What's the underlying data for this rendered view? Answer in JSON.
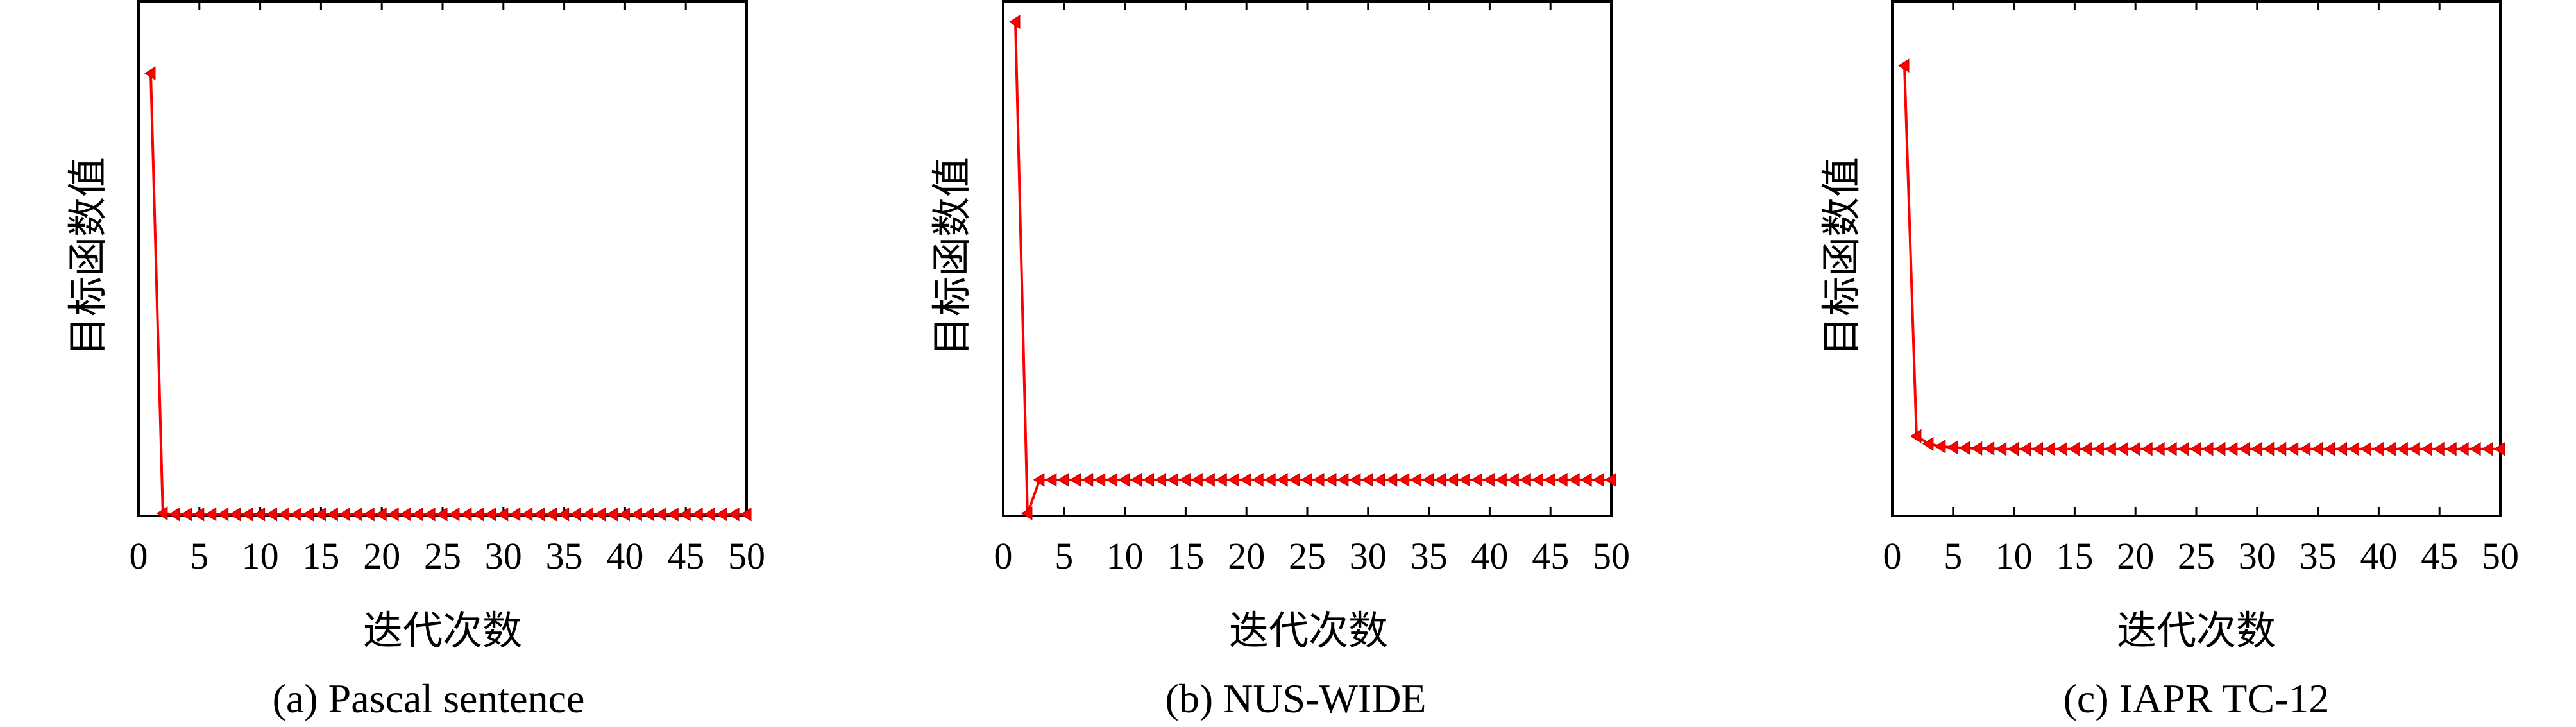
{
  "chart_data": [
    {
      "type": "line",
      "caption": "(a) Pascal sentence",
      "xlabel": "迭代次数",
      "ylabel": "目标函数值",
      "xlim": [
        0,
        50
      ],
      "ylim": [
        0,
        1
      ],
      "x_ticks": [
        "0",
        "5",
        "10",
        "15",
        "20",
        "25",
        "30",
        "35",
        "40",
        "45",
        "50"
      ],
      "y_ticks": [],
      "color": "#ff0000",
      "marker": "left-triangle",
      "series": [
        {
          "values": [
            0.86,
            0.005,
            0.003,
            0.003,
            0.003,
            0.003,
            0.003,
            0.003,
            0.003,
            0.003,
            0.003,
            0.003,
            0.003,
            0.003,
            0.003,
            0.003,
            0.003,
            0.003,
            0.003,
            0.003,
            0.003,
            0.003,
            0.003,
            0.003,
            0.003,
            0.003,
            0.003,
            0.003,
            0.003,
            0.003,
            0.003,
            0.003,
            0.003,
            0.003,
            0.003,
            0.003,
            0.003,
            0.003,
            0.003,
            0.003,
            0.003,
            0.003,
            0.003,
            0.003,
            0.003,
            0.003,
            0.003,
            0.003,
            0.003,
            0.003
          ]
        }
      ]
    },
    {
      "type": "line",
      "caption": "(b) NUS-WIDE",
      "xlabel": "迭代次数",
      "ylabel": "目标函数值",
      "xlim": [
        0,
        50
      ],
      "ylim": [
        0,
        1
      ],
      "x_ticks": [
        "0",
        "5",
        "10",
        "15",
        "20",
        "25",
        "30",
        "35",
        "40",
        "45",
        "50"
      ],
      "y_ticks": [],
      "color": "#ff0000",
      "marker": "left-triangle",
      "series": [
        {
          "values": [
            0.96,
            0.005,
            0.07,
            0.07,
            0.07,
            0.07,
            0.07,
            0.07,
            0.07,
            0.07,
            0.07,
            0.07,
            0.07,
            0.07,
            0.07,
            0.07,
            0.07,
            0.07,
            0.07,
            0.07,
            0.07,
            0.07,
            0.07,
            0.07,
            0.07,
            0.07,
            0.07,
            0.07,
            0.07,
            0.07,
            0.07,
            0.07,
            0.07,
            0.07,
            0.07,
            0.07,
            0.07,
            0.07,
            0.07,
            0.07,
            0.07,
            0.07,
            0.07,
            0.07,
            0.07,
            0.07,
            0.07,
            0.07,
            0.07,
            0.07
          ]
        }
      ]
    },
    {
      "type": "line",
      "caption": "(c) IAPR TC-12",
      "xlabel": "迭代次数",
      "ylabel": "目标函数值",
      "xlim": [
        0,
        50
      ],
      "ylim": [
        0,
        1
      ],
      "x_ticks": [
        "0",
        "5",
        "10",
        "15",
        "20",
        "25",
        "30",
        "35",
        "40",
        "45",
        "50"
      ],
      "y_ticks": [],
      "color": "#ff0000",
      "marker": "left-triangle",
      "series": [
        {
          "values": [
            0.875,
            0.155,
            0.14,
            0.135,
            0.133,
            0.132,
            0.131,
            0.131,
            0.13,
            0.13,
            0.13,
            0.13,
            0.13,
            0.13,
            0.13,
            0.13,
            0.13,
            0.13,
            0.13,
            0.13,
            0.13,
            0.13,
            0.13,
            0.13,
            0.13,
            0.13,
            0.13,
            0.13,
            0.13,
            0.13,
            0.13,
            0.13,
            0.13,
            0.13,
            0.13,
            0.13,
            0.13,
            0.13,
            0.13,
            0.13,
            0.13,
            0.13,
            0.13,
            0.13,
            0.13,
            0.13,
            0.13,
            0.13,
            0.13,
            0.13
          ]
        }
      ]
    }
  ]
}
